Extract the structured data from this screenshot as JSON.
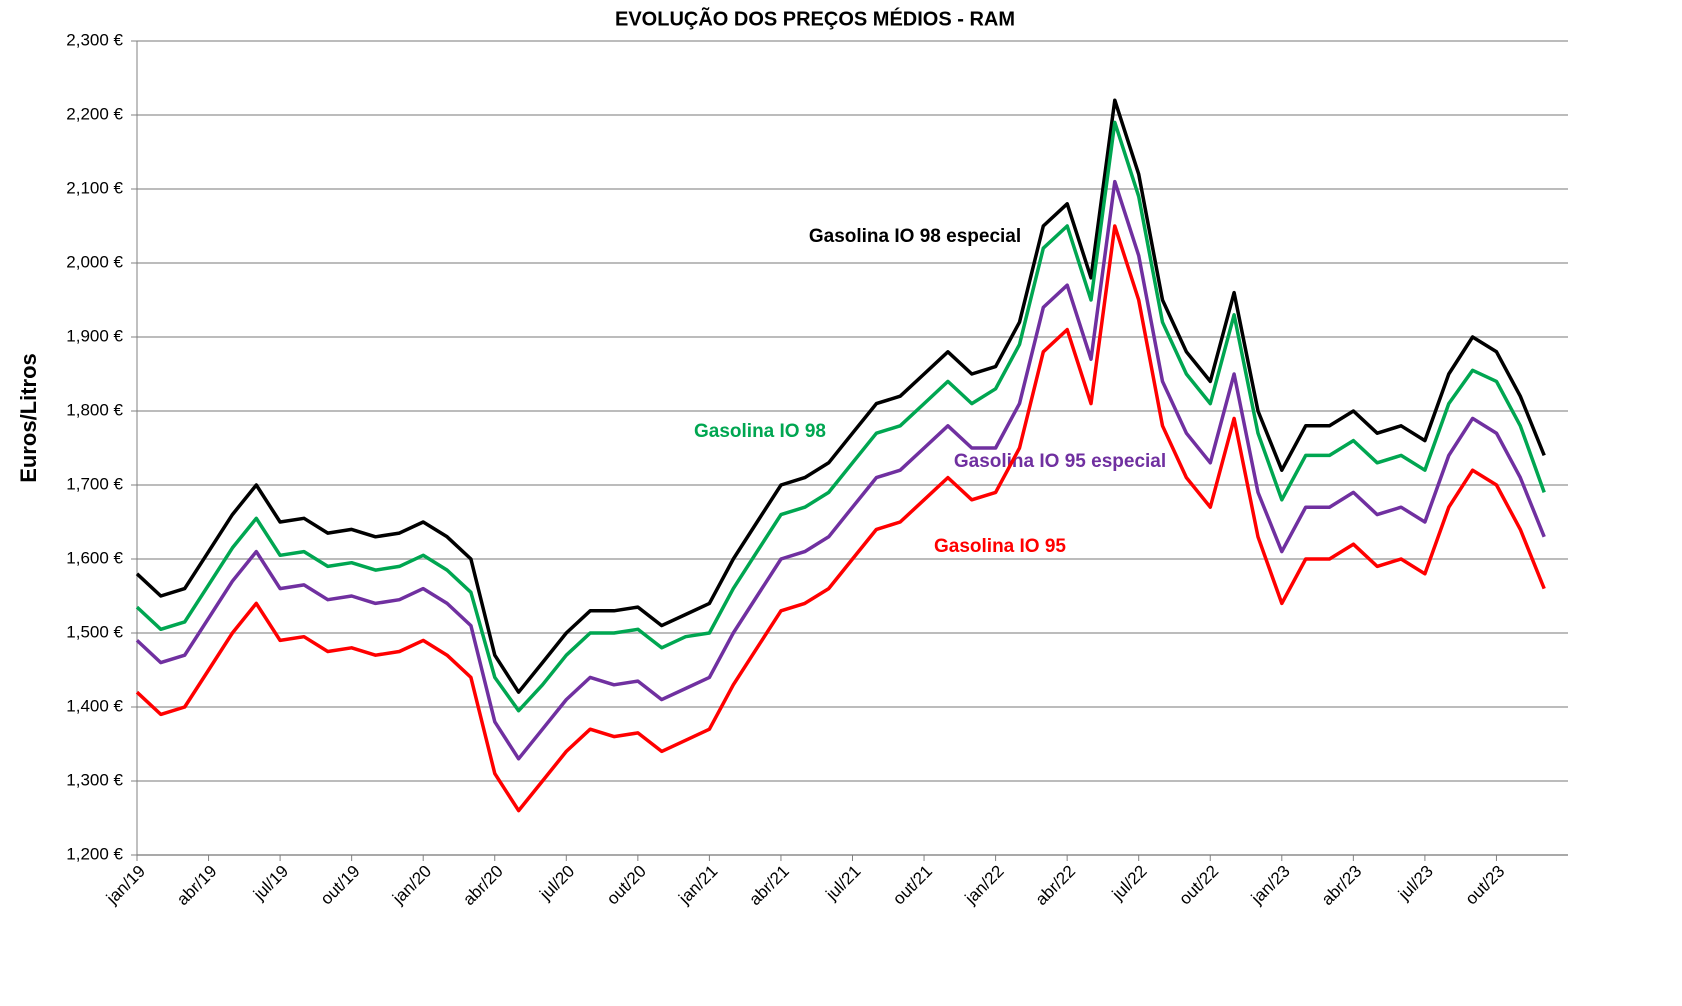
{
  "chart_data": {
    "type": "line",
    "title": "EVOLUÇÃO DOS PREÇOS MÉDIOS - RAM",
    "y_label": "Euros/Litros",
    "categories": [
      "jan/19",
      null,
      null,
      "abr/19",
      null,
      null,
      "jul/19",
      null,
      null,
      "out/19",
      null,
      null,
      "jan/20",
      null,
      null,
      "abr/20",
      null,
      null,
      "jul/20",
      null,
      null,
      "out/20",
      null,
      null,
      "jan/21",
      null,
      null,
      "abr/21",
      null,
      null,
      "jul/21",
      null,
      null,
      "out/21",
      null,
      null,
      "jan/22",
      null,
      null,
      "abr/22",
      null,
      null,
      "jul/22",
      null,
      null,
      "out/22",
      null,
      null,
      "jan/23",
      null,
      null,
      "abr/23",
      null,
      null,
      "jul/23",
      null,
      null,
      "out/23",
      null,
      null
    ],
    "series": [
      {
        "name": "Gasolina IO 98 especial",
        "color": "#000000",
        "values": [
          1.58,
          1.55,
          1.56,
          1.61,
          1.66,
          1.7,
          1.65,
          1.655,
          1.635,
          1.64,
          1.63,
          1.635,
          1.65,
          1.63,
          1.6,
          1.47,
          1.42,
          1.46,
          1.5,
          1.53,
          1.53,
          1.535,
          1.51,
          1.525,
          1.54,
          1.6,
          1.65,
          1.7,
          1.71,
          1.73,
          1.77,
          1.81,
          1.82,
          1.85,
          1.88,
          1.85,
          1.86,
          1.92,
          2.05,
          2.08,
          1.98,
          2.22,
          2.12,
          1.95,
          1.88,
          1.84,
          1.96,
          1.8,
          1.72,
          1.78,
          1.78,
          1.8,
          1.77,
          1.78,
          1.76,
          1.85,
          1.9,
          1.88,
          1.82,
          1.74
        ]
      },
      {
        "name": "Gasolina IO 98",
        "color": "#00a651",
        "values": [
          1.535,
          1.505,
          1.515,
          1.565,
          1.615,
          1.655,
          1.605,
          1.61,
          1.59,
          1.595,
          1.585,
          1.59,
          1.605,
          1.585,
          1.555,
          1.44,
          1.395,
          1.43,
          1.47,
          1.5,
          1.5,
          1.505,
          1.48,
          1.495,
          1.5,
          1.56,
          1.61,
          1.66,
          1.67,
          1.69,
          1.73,
          1.77,
          1.78,
          1.81,
          1.84,
          1.81,
          1.83,
          1.89,
          2.02,
          2.05,
          1.95,
          2.19,
          2.09,
          1.92,
          1.85,
          1.81,
          1.93,
          1.77,
          1.68,
          1.74,
          1.74,
          1.76,
          1.73,
          1.74,
          1.72,
          1.81,
          1.855,
          1.84,
          1.78,
          1.69
        ]
      },
      {
        "name": "Gasolina IO 95 especial",
        "color": "#7030a0",
        "values": [
          1.49,
          1.46,
          1.47,
          1.52,
          1.57,
          1.61,
          1.56,
          1.565,
          1.545,
          1.55,
          1.54,
          1.545,
          1.56,
          1.54,
          1.51,
          1.38,
          1.33,
          1.37,
          1.41,
          1.44,
          1.43,
          1.435,
          1.41,
          1.425,
          1.44,
          1.5,
          1.55,
          1.6,
          1.61,
          1.63,
          1.67,
          1.71,
          1.72,
          1.75,
          1.78,
          1.75,
          1.75,
          1.81,
          1.94,
          1.97,
          1.87,
          2.11,
          2.01,
          1.84,
          1.77,
          1.73,
          1.85,
          1.69,
          1.61,
          1.67,
          1.67,
          1.69,
          1.66,
          1.67,
          1.65,
          1.74,
          1.79,
          1.77,
          1.71,
          1.63
        ]
      },
      {
        "name": "Gasolina IO 95",
        "color": "#ff0000",
        "values": [
          1.42,
          1.39,
          1.4,
          1.45,
          1.5,
          1.54,
          1.49,
          1.495,
          1.475,
          1.48,
          1.47,
          1.475,
          1.49,
          1.47,
          1.44,
          1.31,
          1.26,
          1.3,
          1.34,
          1.37,
          1.36,
          1.365,
          1.34,
          1.355,
          1.37,
          1.43,
          1.48,
          1.53,
          1.54,
          1.56,
          1.6,
          1.64,
          1.65,
          1.68,
          1.71,
          1.68,
          1.69,
          1.75,
          1.88,
          1.91,
          1.81,
          2.05,
          1.95,
          1.78,
          1.71,
          1.67,
          1.79,
          1.63,
          1.54,
          1.6,
          1.6,
          1.62,
          1.59,
          1.6,
          1.58,
          1.67,
          1.72,
          1.7,
          1.64,
          1.56
        ]
      }
    ],
    "ylim": [
      1.2,
      2.3
    ],
    "yticks": [
      {
        "value": 1.2,
        "label": "1,200 €"
      },
      {
        "value": 1.3,
        "label": "1,300 €"
      },
      {
        "value": 1.4,
        "label": "1,400 €"
      },
      {
        "value": 1.5,
        "label": "1,500 €"
      },
      {
        "value": 1.6,
        "label": "1,600 €"
      },
      {
        "value": 1.7,
        "label": "1,700 €"
      },
      {
        "value": 1.8,
        "label": "1,800 €"
      },
      {
        "value": 1.9,
        "label": "1,900 €"
      },
      {
        "value": 2.0,
        "label": "2,000 €"
      },
      {
        "value": 2.1,
        "label": "2,100 €"
      },
      {
        "value": 2.2,
        "label": "2,200 €"
      },
      {
        "value": 2.3,
        "label": "2,300 €"
      }
    ],
    "grid": true
  }
}
